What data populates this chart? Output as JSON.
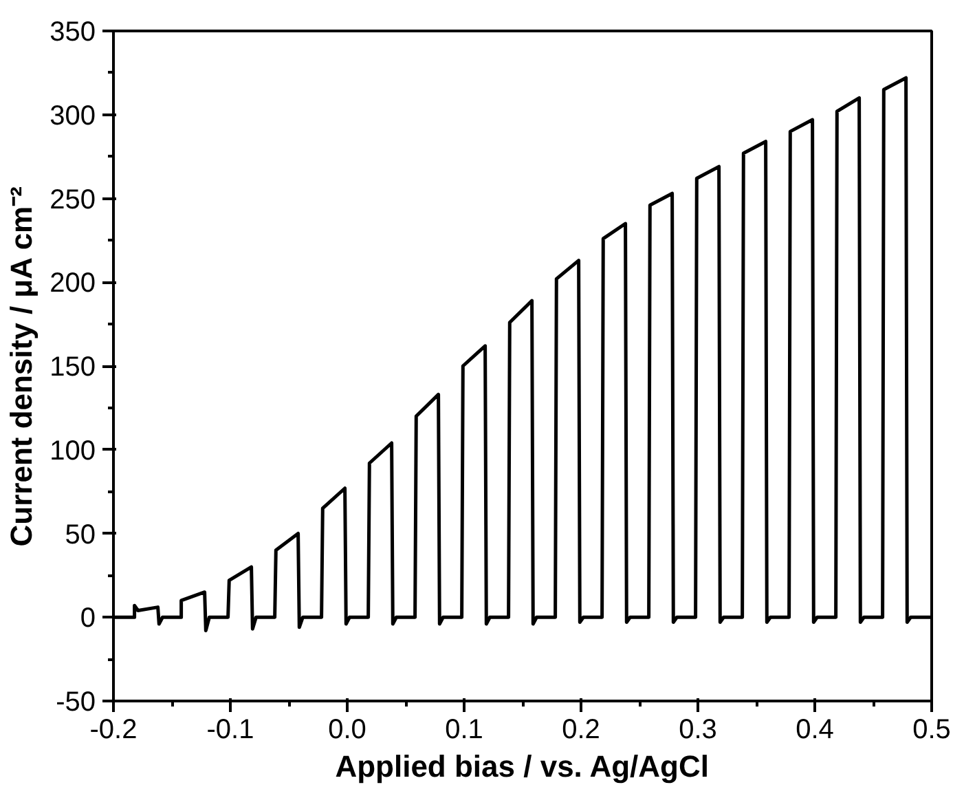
{
  "chart_data": {
    "type": "line",
    "xlabel": "Applied bias / vs. Ag/AgCl",
    "ylabel": "Current density / μA cm⁻²",
    "xlim": [
      -0.2,
      0.5
    ],
    "ylim": [
      -50,
      350
    ],
    "xticks": [
      {
        "value": -0.2,
        "label": "-0.2"
      },
      {
        "value": -0.1,
        "label": "-0.1"
      },
      {
        "value": 0,
        "label": "0.0"
      },
      {
        "value": 0.1,
        "label": "0.1"
      },
      {
        "value": 0.2,
        "label": "0.2"
      },
      {
        "value": 0.3,
        "label": "0.3"
      },
      {
        "value": 0.4,
        "label": "0.4"
      },
      {
        "value": 0.5,
        "label": "0.5"
      }
    ],
    "yticks": [
      -50,
      0,
      50,
      100,
      150,
      200,
      250,
      300,
      350
    ],
    "grid": false,
    "marker": "none",
    "line_style": "solid",
    "series": [
      {
        "color": "#000000",
        "x": [
          -0.2,
          -0.182,
          -0.182,
          -0.179,
          -0.162,
          -0.161,
          -0.158,
          -0.142,
          -0.142,
          -0.122,
          -0.121,
          -0.118,
          -0.102,
          -0.101,
          -0.082,
          -0.081,
          -0.078,
          -0.062,
          -0.061,
          -0.042,
          -0.041,
          -0.038,
          -0.022,
          -0.021,
          -0.002,
          -0.001,
          0.002,
          0.018,
          0.019,
          0.038,
          0.039,
          0.042,
          0.058,
          0.059,
          0.078,
          0.079,
          0.082,
          0.098,
          0.099,
          0.118,
          0.119,
          0.122,
          0.138,
          0.139,
          0.158,
          0.159,
          0.162,
          0.178,
          0.179,
          0.198,
          0.199,
          0.202,
          0.218,
          0.219,
          0.238,
          0.239,
          0.242,
          0.258,
          0.259,
          0.278,
          0.279,
          0.282,
          0.298,
          0.299,
          0.318,
          0.319,
          0.322,
          0.338,
          0.339,
          0.358,
          0.359,
          0.362,
          0.378,
          0.379,
          0.398,
          0.399,
          0.402,
          0.418,
          0.419,
          0.438,
          0.439,
          0.442,
          0.458,
          0.459,
          0.478,
          0.479,
          0.482,
          0.5
        ],
        "values": [
          0,
          0,
          7,
          4,
          6,
          -4,
          0,
          0,
          10,
          15,
          -8,
          0,
          0,
          22,
          30,
          -7,
          0,
          0,
          40,
          50,
          -6,
          0,
          0,
          65,
          77,
          -4,
          0,
          0,
          92,
          104,
          -4,
          0,
          0,
          120,
          133,
          -4,
          0,
          0,
          150,
          162,
          -4,
          0,
          0,
          176,
          189,
          -4,
          0,
          0,
          202,
          213,
          -3,
          0,
          0,
          226,
          235,
          -3,
          0,
          0,
          246,
          253,
          -3,
          0,
          0,
          262,
          269,
          -3,
          0,
          0,
          277,
          284,
          -3,
          0,
          0,
          290,
          297,
          -3,
          0,
          0,
          302,
          310,
          -3,
          0,
          0,
          315,
          322,
          -3,
          0,
          0
        ]
      }
    ]
  }
}
